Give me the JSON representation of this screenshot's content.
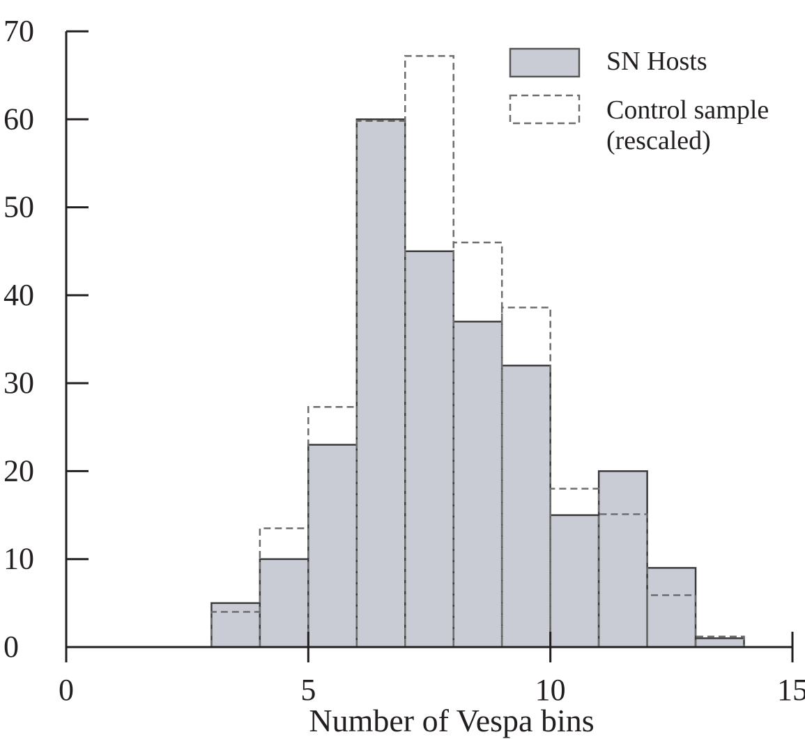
{
  "chart_data": {
    "type": "bar",
    "title": "",
    "xlabel": "Number of Vespa bins",
    "ylabel": "",
    "xlim": [
      0,
      15
    ],
    "ylim": [
      0,
      70
    ],
    "x_ticks": [
      "0",
      "5",
      "10",
      "15"
    ],
    "y_ticks": [
      "0",
      "10",
      "20",
      "30",
      "40",
      "50",
      "60",
      "70"
    ],
    "bin_edges": [
      3,
      4,
      5,
      6,
      7,
      8,
      9,
      10,
      11,
      12,
      13,
      14
    ],
    "series": [
      {
        "name": "SN Hosts",
        "style": "filled",
        "values": [
          5,
          10,
          23,
          60,
          45,
          37,
          32,
          15,
          20,
          9,
          1
        ]
      },
      {
        "name": "Control sample (rescaled)",
        "style": "dashed-outline",
        "values": [
          4,
          13.5,
          27.3,
          59.8,
          67.2,
          46,
          38.6,
          18,
          15.1,
          5.9,
          1.2
        ]
      }
    ],
    "legend": {
      "position": "top-right",
      "entries": [
        {
          "lines": [
            "SN Hosts"
          ]
        },
        {
          "lines": [
            "Control sample",
            "(rescaled)"
          ]
        }
      ]
    },
    "colors": {
      "fill": "#c9ccd4",
      "bar_stroke": "#3a3a3a",
      "dashed": "#6d6d6d",
      "axis": "#231f20"
    },
    "grid": false
  }
}
